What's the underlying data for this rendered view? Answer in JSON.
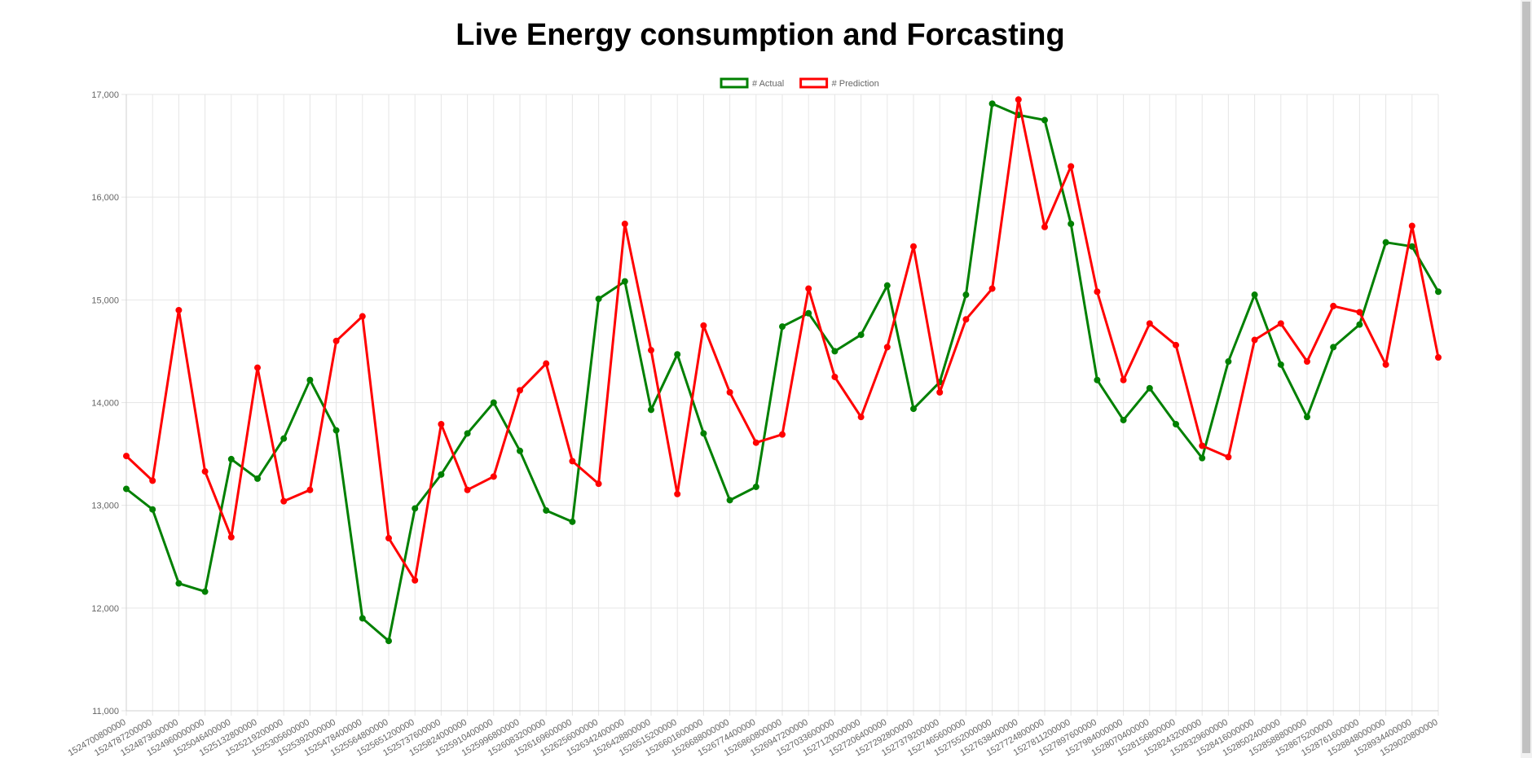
{
  "chart_data": {
    "type": "line",
    "title": "Live Energy consumption and Forcasting",
    "legend_position": "top-center",
    "grid": true,
    "ylim": [
      11000,
      17000
    ],
    "y_ticks": [
      "11,000",
      "12,000",
      "13,000",
      "14,000",
      "15,000",
      "16,000",
      "17,000"
    ],
    "x": [
      "1524700800000",
      "1524787200000",
      "1524873600000",
      "1524960000000",
      "1525046400000",
      "1525132800000",
      "1525219200000",
      "1525305600000",
      "1525392000000",
      "1525478400000",
      "1525564800000",
      "1525651200000",
      "1525737600000",
      "1525824000000",
      "1525910400000",
      "1525996800000",
      "1526083200000",
      "1526169600000",
      "1526256000000",
      "1526342400000",
      "1526428800000",
      "1526515200000",
      "1526601600000",
      "1526688000000",
      "1526774400000",
      "1526860800000",
      "1526947200000",
      "1527033600000",
      "1527120000000",
      "1527206400000",
      "1527292800000",
      "1527379200000",
      "1527465600000",
      "1527552000000",
      "1527638400000",
      "1527724800000",
      "1527811200000",
      "1527897600000",
      "1527984000000",
      "1528070400000",
      "1528156800000",
      "1528243200000",
      "1528329600000",
      "1528416000000",
      "1528502400000",
      "1528588800000",
      "1528675200000",
      "1528761600000",
      "1528848000000",
      "1528934400000",
      "1529020800000"
    ],
    "series": [
      {
        "name": "# Actual",
        "color": "#008000",
        "values": [
          13160,
          12960,
          12240,
          12160,
          13450,
          13260,
          13650,
          14220,
          13730,
          11900,
          11680,
          12970,
          13300,
          13700,
          14000,
          13530,
          12950,
          12840,
          15010,
          15180,
          13930,
          14470,
          13700,
          13050,
          13180,
          14740,
          14870,
          14500,
          14660,
          15140,
          13940,
          14200,
          15050,
          16910,
          16800,
          16750,
          15740,
          14220,
          13830,
          14140,
          13790,
          13460,
          14400,
          15050,
          14370,
          13860,
          14540,
          14760,
          15560,
          15520,
          15080
        ]
      },
      {
        "name": "# Prediction",
        "color": "#ff0000",
        "values": [
          13480,
          13240,
          14900,
          13330,
          12690,
          14340,
          13040,
          13150,
          14600,
          14840,
          12680,
          12270,
          13790,
          13150,
          13280,
          14120,
          14380,
          13430,
          13210,
          15740,
          14510,
          13110,
          14750,
          14100,
          13610,
          13690,
          15110,
          14250,
          13860,
          14540,
          15520,
          14100,
          14810,
          15110,
          16950,
          15710,
          16300,
          15080,
          14220,
          14770,
          14560,
          13580,
          13470,
          14610,
          14770,
          14400,
          14940,
          14880,
          14370,
          15720,
          14440
        ]
      }
    ]
  }
}
